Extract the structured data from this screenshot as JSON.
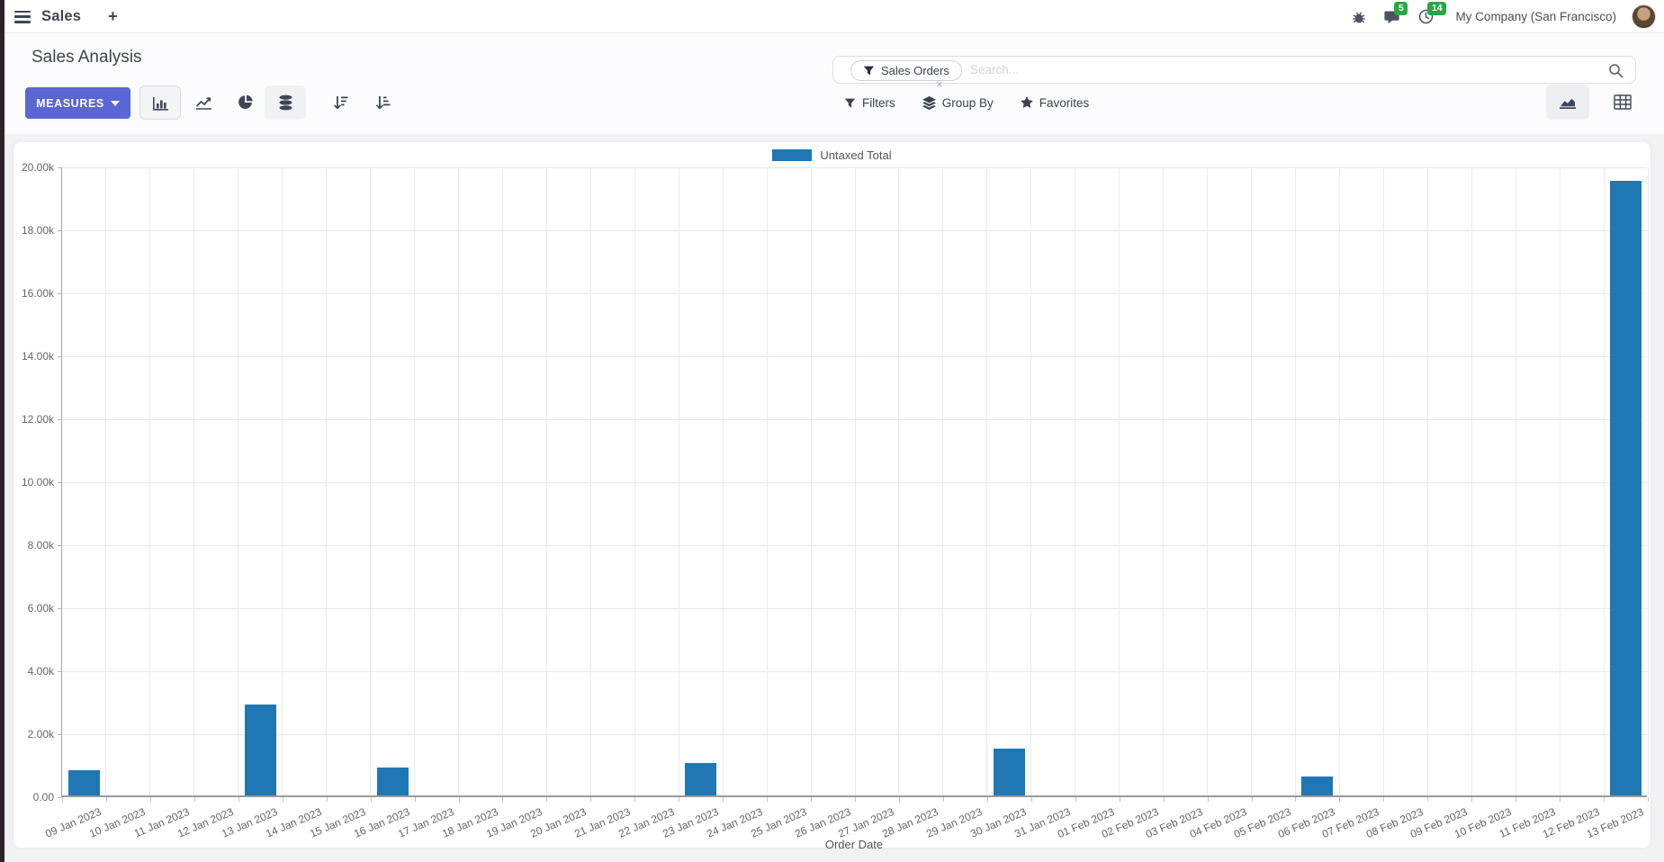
{
  "navbar": {
    "app_name": "Sales",
    "plus_label": "+",
    "messages_badge": "5",
    "activities_badge": "14",
    "company": "My Company (San Francisco)"
  },
  "control_panel": {
    "title": "Sales Analysis",
    "measures_label": "MEASURES",
    "search": {
      "facet": "Sales Orders",
      "facet_remove": "×",
      "placeholder": "Search..."
    },
    "buttons": {
      "filters": "Filters",
      "group_by": "Group By",
      "favorites": "Favorites"
    }
  },
  "colors": {
    "bar_blue": "#1f77b4",
    "primary_button": "#5a66d3",
    "badge_green": "#28a745"
  },
  "chart_data": {
    "type": "bar",
    "title": "",
    "xlabel": "Order Date",
    "ylabel": "",
    "ylim": [
      0,
      20000
    ],
    "grid": true,
    "legend_position": "top",
    "ytick_labels": [
      "0.00",
      "2.00k",
      "4.00k",
      "6.00k",
      "8.00k",
      "10.00k",
      "12.00k",
      "14.00k",
      "16.00k",
      "18.00k",
      "20.00k"
    ],
    "categories": [
      "09 Jan 2023",
      "10 Jan 2023",
      "11 Jan 2023",
      "12 Jan 2023",
      "13 Jan 2023",
      "14 Jan 2023",
      "15 Jan 2023",
      "16 Jan 2023",
      "17 Jan 2023",
      "18 Jan 2023",
      "19 Jan 2023",
      "20 Jan 2023",
      "21 Jan 2023",
      "22 Jan 2023",
      "23 Jan 2023",
      "24 Jan 2023",
      "25 Jan 2023",
      "26 Jan 2023",
      "27 Jan 2023",
      "28 Jan 2023",
      "29 Jan 2023",
      "30 Jan 2023",
      "31 Jan 2023",
      "01 Feb 2023",
      "02 Feb 2023",
      "03 Feb 2023",
      "04 Feb 2023",
      "05 Feb 2023",
      "06 Feb 2023",
      "07 Feb 2023",
      "08 Feb 2023",
      "09 Feb 2023",
      "10 Feb 2023",
      "11 Feb 2023",
      "12 Feb 2023",
      "13 Feb 2023"
    ],
    "series": [
      {
        "name": "Untaxed Total",
        "color": "#1f77b4",
        "values": [
          790,
          0,
          0,
          0,
          2890,
          0,
          0,
          900,
          0,
          0,
          0,
          0,
          0,
          0,
          1030,
          0,
          0,
          0,
          0,
          0,
          0,
          1480,
          0,
          0,
          0,
          0,
          0,
          0,
          600,
          0,
          0,
          0,
          0,
          0,
          0,
          19520
        ]
      }
    ]
  }
}
